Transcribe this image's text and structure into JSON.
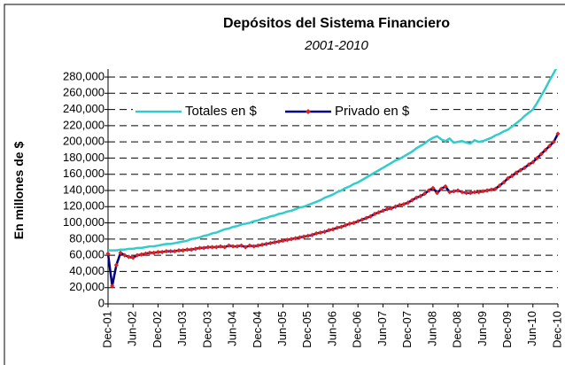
{
  "chart_data": {
    "type": "line",
    "title": "Depósitos del Sistema Financiero",
    "subtitle": "2001-2010",
    "y_label": "En millones de $",
    "categories": [
      "Dec-01",
      null,
      null,
      null,
      null,
      null,
      "Jun-02",
      null,
      null,
      null,
      null,
      null,
      "Dec-02",
      null,
      null,
      null,
      null,
      null,
      "Jun-03",
      null,
      null,
      null,
      null,
      null,
      "Dec-03",
      null,
      null,
      null,
      null,
      null,
      "Jun-04",
      null,
      null,
      null,
      null,
      null,
      "Dec-04",
      null,
      null,
      null,
      null,
      null,
      "Jun-05",
      null,
      null,
      null,
      null,
      null,
      "Dec-05",
      null,
      null,
      null,
      null,
      null,
      "Jun-06",
      null,
      null,
      null,
      null,
      null,
      "Dec-06",
      null,
      null,
      null,
      null,
      null,
      "Jun-07",
      null,
      null,
      null,
      null,
      null,
      "Dec-07",
      null,
      null,
      null,
      null,
      null,
      "Jun-08",
      null,
      null,
      null,
      null,
      null,
      "Dec-08",
      null,
      null,
      null,
      null,
      null,
      "Jun-09",
      null,
      null,
      null,
      null,
      null,
      "Dec-09",
      null,
      null,
      null,
      null,
      null,
      "Jun-10",
      null,
      null,
      null,
      null,
      null,
      "Dec-10"
    ],
    "series": [
      {
        "name": "Totales en $",
        "color": "#33cccc",
        "values": [
          66000,
          66000,
          66000,
          67000,
          67000,
          68000,
          68000,
          69000,
          69000,
          70000,
          71000,
          71000,
          72000,
          73000,
          74000,
          74000,
          75000,
          76000,
          77000,
          78000,
          80000,
          81000,
          82000,
          84000,
          85000,
          87000,
          88000,
          90000,
          92000,
          93000,
          95000,
          96000,
          98000,
          99000,
          100000,
          102000,
          103000,
          105000,
          106000,
          108000,
          109000,
          111000,
          112000,
          114000,
          115000,
          117000,
          119000,
          120000,
          122000,
          124000,
          126000,
          128000,
          131000,
          133000,
          135000,
          138000,
          140000,
          143000,
          145000,
          148000,
          150000,
          153000,
          156000,
          159000,
          162000,
          165000,
          168000,
          171000,
          174000,
          177000,
          179000,
          182000,
          185000,
          188000,
          192000,
          195000,
          198000,
          202000,
          205000,
          207000,
          203000,
          201000,
          204000,
          199000,
          200000,
          201000,
          199000,
          198000,
          202000,
          200000,
          201000,
          203000,
          205000,
          208000,
          210000,
          213000,
          215000,
          219000,
          223000,
          227000,
          232000,
          236000,
          240000,
          248000,
          257000,
          266000,
          276000,
          285000,
          295000
        ]
      },
      {
        "name": "Privado en $",
        "color": "#000080",
        "marker_color": "#dd2222",
        "values": [
          62000,
          22000,
          48000,
          63000,
          60000,
          58000,
          57000,
          60000,
          61000,
          62000,
          63000,
          63000,
          64000,
          64000,
          65000,
          65000,
          65000,
          66000,
          66000,
          67000,
          67000,
          68000,
          69000,
          69000,
          70000,
          70000,
          70000,
          71000,
          70000,
          72000,
          71000,
          71000,
          72000,
          70000,
          72000,
          71000,
          72000,
          73000,
          74000,
          75000,
          76000,
          77000,
          78000,
          79000,
          80000,
          81000,
          82000,
          83000,
          84000,
          85000,
          87000,
          88000,
          89000,
          91000,
          92000,
          94000,
          95000,
          97000,
          99000,
          100000,
          102000,
          104000,
          106000,
          108000,
          111000,
          113000,
          115000,
          117000,
          118000,
          120000,
          122000,
          123000,
          125000,
          128000,
          131000,
          133000,
          136000,
          140000,
          143000,
          137000,
          142000,
          145000,
          138000,
          139000,
          140000,
          138000,
          137000,
          137000,
          138000,
          138000,
          139000,
          140000,
          141000,
          142000,
          146000,
          150000,
          155000,
          158000,
          162000,
          165000,
          168000,
          172000,
          175000,
          180000,
          185000,
          190000,
          195000,
          200000,
          210000
        ]
      }
    ],
    "ylim": [
      0,
      280000
    ],
    "yticks": [
      0,
      {
        "value": 20000,
        "label": "20,000"
      },
      {
        "value": 40000,
        "label": "40,000"
      },
      {
        "value": 60000,
        "label": "60,000"
      },
      {
        "value": 80000,
        "label": "80,000"
      },
      {
        "value": 100000,
        "label": "100,000"
      },
      {
        "value": 120000,
        "label": "120,000"
      },
      {
        "value": 140000,
        "label": "140,000"
      },
      {
        "value": 160000,
        "label": "160,000"
      },
      {
        "value": 180000,
        "label": "180,000"
      },
      {
        "value": 200000,
        "label": "200,000"
      },
      {
        "value": 220000,
        "label": "220,000"
      },
      {
        "value": 240000,
        "label": "240,000"
      },
      {
        "value": 260000,
        "label": "260,000"
      },
      {
        "value": 280000,
        "label": "280,000"
      }
    ],
    "grid": true
  }
}
